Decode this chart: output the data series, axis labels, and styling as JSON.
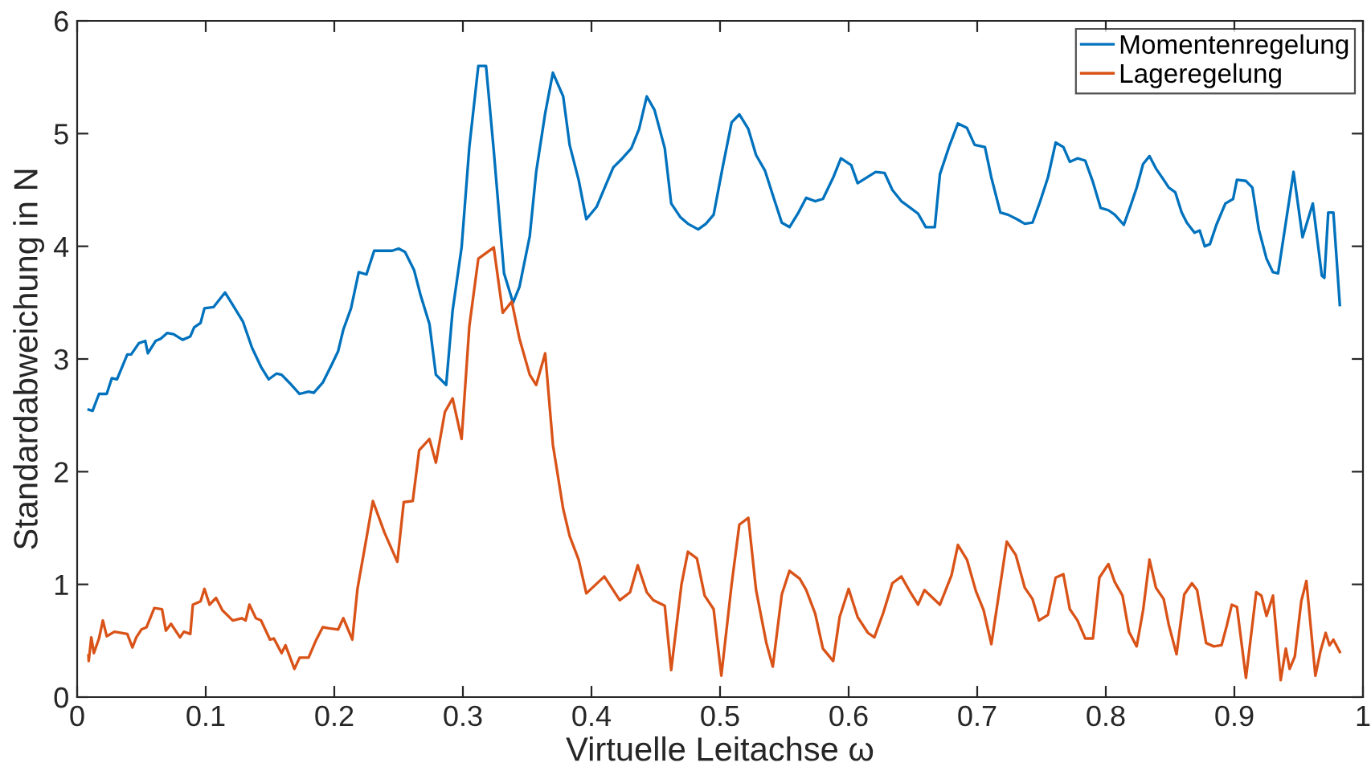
{
  "chart_data": {
    "type": "line",
    "xlabel": "Virtuelle Leitachse ω",
    "ylabel": "Standardabweichung in N",
    "xlim": [
      0,
      1
    ],
    "ylim": [
      0,
      6
    ],
    "xticks": [
      0,
      0.1,
      0.2,
      0.3,
      0.4,
      0.5,
      0.6,
      0.7,
      0.8,
      0.9,
      1
    ],
    "yticks": [
      0,
      1,
      2,
      3,
      4,
      5,
      6
    ],
    "grid": false,
    "legend": "top right",
    "series": [
      {
        "name": "Momentenregelung",
        "color": "#0072bd",
        "x": [
          0.009,
          0.012,
          0.017,
          0.023,
          0.027,
          0.031,
          0.035,
          0.039,
          0.042,
          0.048,
          0.053,
          0.055,
          0.061,
          0.065,
          0.07,
          0.075,
          0.082,
          0.088,
          0.091,
          0.096,
          0.099,
          0.106,
          0.115,
          0.121,
          0.129,
          0.136,
          0.143,
          0.149,
          0.155,
          0.159,
          0.165,
          0.173,
          0.18,
          0.184,
          0.191,
          0.198,
          0.203,
          0.207,
          0.213,
          0.219,
          0.225,
          0.231,
          0.245,
          0.25,
          0.255,
          0.262,
          0.267,
          0.274,
          0.279,
          0.287,
          0.292,
          0.299,
          0.305,
          0.312,
          0.318,
          0.324,
          0.332,
          0.339,
          0.344,
          0.352,
          0.357,
          0.364,
          0.37,
          0.378,
          0.383,
          0.39,
          0.396,
          0.404,
          0.411,
          0.417,
          0.424,
          0.431,
          0.437,
          0.443,
          0.449,
          0.457,
          0.462,
          0.469,
          0.475,
          0.483,
          0.489,
          0.495,
          0.502,
          0.509,
          0.515,
          0.522,
          0.528,
          0.535,
          0.542,
          0.548,
          0.554,
          0.561,
          0.567,
          0.574,
          0.58,
          0.588,
          0.594,
          0.602,
          0.607,
          0.614,
          0.621,
          0.628,
          0.634,
          0.641,
          0.647,
          0.654,
          0.66,
          0.667,
          0.671,
          0.678,
          0.685,
          0.692,
          0.698,
          0.706,
          0.711,
          0.718,
          0.724,
          0.731,
          0.737,
          0.743,
          0.749,
          0.755,
          0.761,
          0.767,
          0.772,
          0.778,
          0.784,
          0.79,
          0.796,
          0.802,
          0.807,
          0.814,
          0.819,
          0.824,
          0.829,
          0.834,
          0.839,
          0.845,
          0.849,
          0.854,
          0.859,
          0.863,
          0.869,
          0.873,
          0.877,
          0.881,
          0.886,
          0.893,
          0.899,
          0.902,
          0.909,
          0.914,
          0.919,
          0.925,
          0.93,
          0.934,
          0.946,
          0.953,
          0.961,
          0.968,
          0.97,
          0.973,
          0.977,
          0.982
        ],
        "values": [
          2.55,
          2.54,
          2.69,
          2.69,
          2.83,
          2.82,
          2.93,
          3.04,
          3.04,
          3.14,
          3.16,
          3.05,
          3.16,
          3.18,
          3.23,
          3.22,
          3.17,
          3.2,
          3.28,
          3.32,
          3.45,
          3.46,
          3.59,
          3.48,
          3.33,
          3.1,
          2.93,
          2.82,
          2.87,
          2.86,
          2.79,
          2.69,
          2.71,
          2.7,
          2.79,
          2.95,
          3.07,
          3.26,
          3.45,
          3.77,
          3.75,
          3.96,
          3.96,
          3.98,
          3.95,
          3.79,
          3.57,
          3.31,
          2.86,
          2.77,
          3.43,
          3.99,
          4.88,
          5.6,
          5.6,
          4.85,
          3.76,
          3.5,
          3.64,
          4.09,
          4.66,
          5.18,
          5.54,
          5.33,
          4.9,
          4.59,
          4.24,
          4.35,
          4.54,
          4.7,
          4.78,
          4.87,
          5.04,
          5.33,
          5.21,
          4.87,
          4.38,
          4.26,
          4.2,
          4.15,
          4.2,
          4.28,
          4.7,
          5.1,
          5.17,
          5.04,
          4.81,
          4.67,
          4.42,
          4.21,
          4.17,
          4.3,
          4.43,
          4.4,
          4.42,
          4.61,
          4.78,
          4.72,
          4.56,
          4.61,
          4.66,
          4.65,
          4.5,
          4.4,
          4.35,
          4.29,
          4.17,
          4.17,
          4.64,
          4.88,
          5.09,
          5.05,
          4.9,
          4.88,
          4.61,
          4.3,
          4.28,
          4.24,
          4.2,
          4.21,
          4.4,
          4.61,
          4.92,
          4.88,
          4.75,
          4.78,
          4.76,
          4.57,
          4.34,
          4.32,
          4.28,
          4.19,
          4.35,
          4.52,
          4.73,
          4.8,
          4.69,
          4.59,
          4.52,
          4.48,
          4.3,
          4.21,
          4.12,
          4.14,
          4.0,
          4.02,
          4.19,
          4.38,
          4.42,
          4.59,
          4.58,
          4.52,
          4.15,
          3.89,
          3.77,
          3.76,
          4.66,
          4.08,
          4.38,
          3.74,
          3.72,
          4.3,
          4.3,
          3.48
        ]
      },
      {
        "name": "Lageregelung",
        "color": "#d95319",
        "x": [
          0.0088,
          0.009,
          0.011,
          0.013,
          0.017,
          0.02,
          0.023,
          0.029,
          0.039,
          0.043,
          0.046,
          0.05,
          0.054,
          0.06,
          0.066,
          0.069,
          0.073,
          0.08,
          0.083,
          0.088,
          0.09,
          0.096,
          0.099,
          0.103,
          0.108,
          0.113,
          0.121,
          0.128,
          0.131,
          0.134,
          0.139,
          0.143,
          0.15,
          0.153,
          0.159,
          0.162,
          0.169,
          0.173,
          0.18,
          0.186,
          0.191,
          0.196,
          0.203,
          0.207,
          0.214,
          0.218,
          0.225,
          0.23,
          0.239,
          0.249,
          0.254,
          0.261,
          0.266,
          0.274,
          0.279,
          0.286,
          0.292,
          0.299,
          0.305,
          0.312,
          0.324,
          0.331,
          0.338,
          0.344,
          0.352,
          0.357,
          0.364,
          0.37,
          0.378,
          0.383,
          0.39,
          0.396,
          0.41,
          0.422,
          0.43,
          0.436,
          0.443,
          0.448,
          0.457,
          0.462,
          0.47,
          0.475,
          0.482,
          0.488,
          0.495,
          0.501,
          0.509,
          0.515,
          0.522,
          0.528,
          0.536,
          0.541,
          0.548,
          0.554,
          0.562,
          0.567,
          0.574,
          0.58,
          0.588,
          0.593,
          0.6,
          0.607,
          0.615,
          0.62,
          0.627,
          0.634,
          0.641,
          0.648,
          0.654,
          0.659,
          0.671,
          0.68,
          0.685,
          0.692,
          0.699,
          0.705,
          0.711,
          0.723,
          0.73,
          0.737,
          0.743,
          0.748,
          0.755,
          0.761,
          0.767,
          0.772,
          0.778,
          0.784,
          0.79,
          0.795,
          0.802,
          0.807,
          0.813,
          0.818,
          0.824,
          0.829,
          0.834,
          0.839,
          0.845,
          0.849,
          0.855,
          0.861,
          0.867,
          0.871,
          0.878,
          0.884,
          0.89,
          0.894,
          0.898,
          0.902,
          0.909,
          0.917,
          0.921,
          0.925,
          0.93,
          0.936,
          0.94,
          0.943,
          0.947,
          0.952,
          0.956,
          0.963,
          0.967,
          0.971,
          0.974,
          0.977,
          0.982
        ],
        "values": [
          0.37,
          0.32,
          0.53,
          0.39,
          0.52,
          0.68,
          0.54,
          0.58,
          0.56,
          0.44,
          0.53,
          0.6,
          0.62,
          0.79,
          0.78,
          0.59,
          0.65,
          0.53,
          0.58,
          0.56,
          0.82,
          0.85,
          0.96,
          0.82,
          0.88,
          0.77,
          0.68,
          0.7,
          0.68,
          0.82,
          0.7,
          0.68,
          0.51,
          0.52,
          0.39,
          0.46,
          0.25,
          0.35,
          0.35,
          0.51,
          0.62,
          0.61,
          0.6,
          0.7,
          0.51,
          0.96,
          1.41,
          1.74,
          1.46,
          1.2,
          1.73,
          1.74,
          2.19,
          2.29,
          2.08,
          2.53,
          2.65,
          2.29,
          3.29,
          3.89,
          3.99,
          3.41,
          3.51,
          3.18,
          2.86,
          2.77,
          3.05,
          2.24,
          1.67,
          1.43,
          1.22,
          0.92,
          1.07,
          0.86,
          0.93,
          1.17,
          0.93,
          0.86,
          0.81,
          0.24,
          1.0,
          1.29,
          1.23,
          0.9,
          0.78,
          0.19,
          1.0,
          1.53,
          1.59,
          0.95,
          0.48,
          0.27,
          0.91,
          1.12,
          1.05,
          0.95,
          0.74,
          0.43,
          0.32,
          0.71,
          0.96,
          0.71,
          0.57,
          0.53,
          0.75,
          1.01,
          1.07,
          0.93,
          0.82,
          0.95,
          0.82,
          1.08,
          1.35,
          1.22,
          0.94,
          0.77,
          0.47,
          1.38,
          1.26,
          0.97,
          0.87,
          0.68,
          0.73,
          1.06,
          1.09,
          0.78,
          0.68,
          0.52,
          0.52,
          1.06,
          1.18,
          1.02,
          0.9,
          0.58,
          0.45,
          0.77,
          1.22,
          0.97,
          0.87,
          0.64,
          0.38,
          0.91,
          1.01,
          0.95,
          0.48,
          0.45,
          0.46,
          0.63,
          0.82,
          0.8,
          0.17,
          0.93,
          0.9,
          0.72,
          0.9,
          0.15,
          0.43,
          0.25,
          0.36,
          0.85,
          1.03,
          0.19,
          0.41,
          0.57,
          0.46,
          0.51,
          0.4
        ]
      }
    ]
  }
}
